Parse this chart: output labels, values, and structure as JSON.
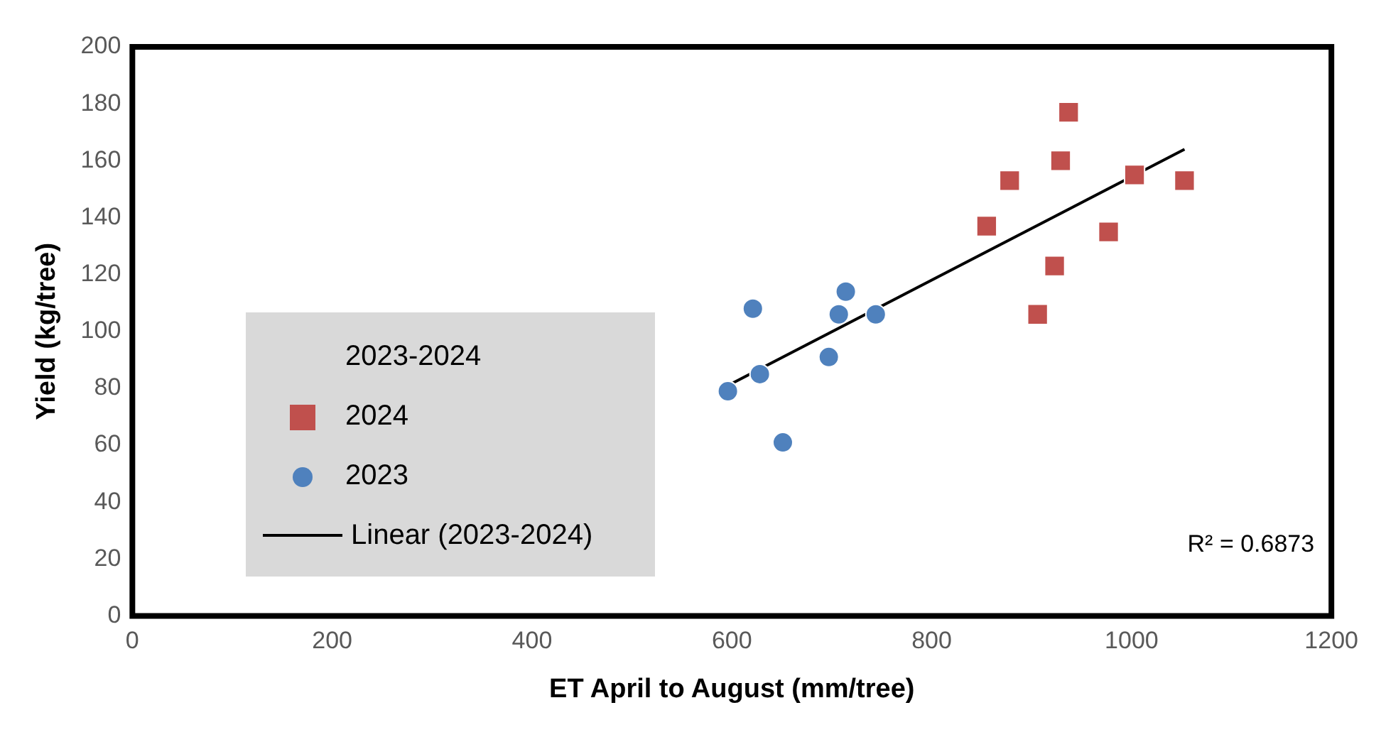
{
  "chart_data": {
    "type": "scatter",
    "xlabel": "ET April to August (mm/tree)",
    "ylabel": "Yield (kg/tree)",
    "xlim": [
      0,
      1200
    ],
    "xticks": [
      0,
      200,
      400,
      600,
      800,
      1000,
      1200
    ],
    "ylim": [
      0,
      200
    ],
    "yticks": [
      0,
      20,
      40,
      60,
      80,
      100,
      120,
      140,
      160,
      180,
      200
    ],
    "grid": false,
    "legend": "bottom left",
    "legend_title": "2023-2024",
    "annotations": [
      "R² = 0.6873"
    ],
    "series": [
      {
        "name": "2024",
        "color": "#c0504d",
        "marker": "square",
        "x": [
          937,
          929,
          878,
          1003,
          1053,
          855,
          977,
          923,
          906
        ],
        "values": [
          177,
          160,
          153,
          155,
          153,
          137,
          135,
          123,
          106
        ]
      },
      {
        "name": "2023",
        "color": "#4f81bd",
        "marker": "circle",
        "x": [
          596,
          621,
          628,
          651,
          697,
          707,
          714,
          744
        ],
        "values": [
          79,
          108,
          85,
          61,
          91,
          106,
          114,
          106
        ]
      },
      {
        "name": "Linear (2023-2024)",
        "type": "line",
        "color": "#000000",
        "marker": "none",
        "line_style": "solid",
        "x": [
          596,
          1053
        ],
        "values": [
          81,
          164
        ]
      }
    ]
  }
}
